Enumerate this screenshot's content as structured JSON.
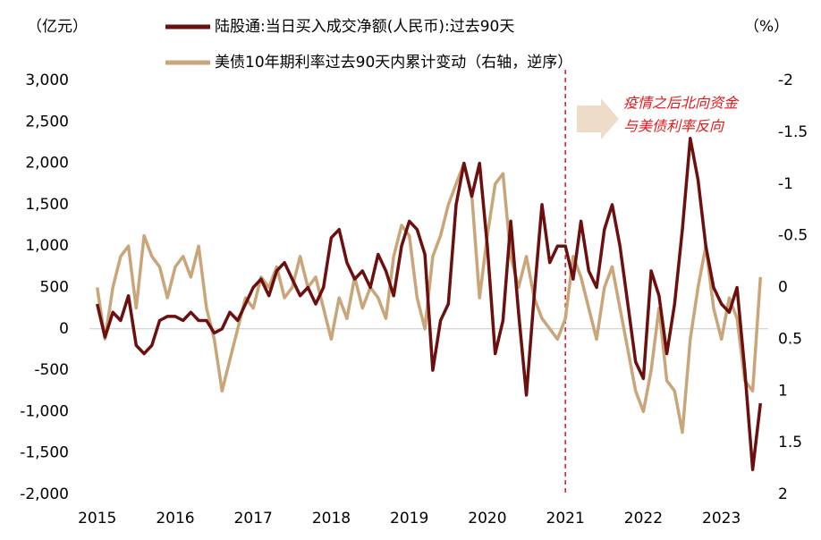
{
  "chart_data": {
    "type": "line",
    "y_axis_label": "（亿元）",
    "y2_axis_label": "（%）",
    "annotations": [
      "疫情之后北向资金",
      "与美债利率反向"
    ],
    "vline": 2021,
    "vline_color": "#d7191c",
    "xlim": [
      2014.9,
      2023.6
    ],
    "xticks": [
      2015,
      2016,
      2017,
      2018,
      2019,
      2020,
      2021,
      2022,
      2023
    ],
    "ylim": [
      -2000,
      3000
    ],
    "yticks": [
      {
        "value": -2000,
        "label": "-2,000"
      },
      {
        "value": -1500,
        "label": "-1,500"
      },
      {
        "value": -1000,
        "label": "-1,000"
      },
      -500,
      0,
      500,
      {
        "value": 1000,
        "label": "1,000"
      },
      {
        "value": 1500,
        "label": "1,500"
      },
      {
        "value": 2000,
        "label": "2,000"
      },
      {
        "value": 2500,
        "label": "2,500"
      },
      {
        "value": 3000,
        "label": "3,000"
      }
    ],
    "y2lim": [
      -2,
      2
    ],
    "y2_reversed": true,
    "y2ticks": [
      -2,
      -1.5,
      -1,
      -0.5,
      0,
      0.5,
      1,
      1.5,
      2
    ],
    "x": [
      2015.0,
      2015.1,
      2015.2,
      2015.3,
      2015.4,
      2015.5,
      2015.6,
      2015.7,
      2015.8,
      2015.9,
      2016.0,
      2016.1,
      2016.2,
      2016.3,
      2016.4,
      2016.5,
      2016.6,
      2016.7,
      2016.8,
      2016.9,
      2017.0,
      2017.1,
      2017.2,
      2017.3,
      2017.4,
      2017.5,
      2017.6,
      2017.7,
      2017.8,
      2017.9,
      2018.0,
      2018.1,
      2018.2,
      2018.3,
      2018.4,
      2018.5,
      2018.6,
      2018.7,
      2018.8,
      2018.9,
      2019.0,
      2019.1,
      2019.2,
      2019.3,
      2019.4,
      2019.5,
      2019.6,
      2019.7,
      2019.8,
      2019.9,
      2020.0,
      2020.1,
      2020.2,
      2020.3,
      2020.4,
      2020.5,
      2020.6,
      2020.7,
      2020.8,
      2020.9,
      2021.0,
      2021.1,
      2021.2,
      2021.3,
      2021.4,
      2021.5,
      2021.6,
      2021.7,
      2021.8,
      2021.9,
      2022.0,
      2022.1,
      2022.2,
      2022.3,
      2022.4,
      2022.5,
      2022.6,
      2022.7,
      2022.8,
      2022.9,
      2023.0,
      2023.1,
      2023.2,
      2023.3,
      2023.4,
      2023.5
    ],
    "series": [
      {
        "name": "陆股通:当日买入成交净额(人民币):过去90天",
        "color": "#6b0f0f",
        "values": [
          300,
          -100,
          200,
          100,
          400,
          -200,
          -300,
          -200,
          100,
          150,
          150,
          100,
          200,
          100,
          100,
          -50,
          0,
          200,
          100,
          300,
          500,
          600,
          400,
          700,
          800,
          600,
          400,
          500,
          300,
          500,
          1100,
          1200,
          800,
          600,
          700,
          500,
          900,
          700,
          400,
          1000,
          1300,
          1200,
          900,
          -500,
          100,
          300,
          1500,
          2000,
          1600,
          2000,
          1000,
          -300,
          100,
          1300,
          200,
          -800,
          400,
          1500,
          800,
          1000,
          1000,
          600,
          1300,
          700,
          500,
          1200,
          1500,
          1000,
          300,
          -400,
          -600,
          700,
          400,
          -300,
          300,
          1200,
          2300,
          1800,
          1000,
          500,
          300,
          200,
          500,
          -500,
          -1700,
          -900
        ]
      },
      {
        "name": "美债10年期利率过去90天内累计变动（右轴，逆序）",
        "color": "#c9a57a",
        "axis": "y2",
        "values": [
          0,
          0.5,
          0,
          -0.3,
          -0.4,
          0.2,
          -0.5,
          -0.3,
          -0.2,
          0.1,
          -0.2,
          -0.3,
          -0.1,
          -0.4,
          0.2,
          0.5,
          1.0,
          0.7,
          0.4,
          0.1,
          0.2,
          -0.1,
          0,
          -0.2,
          0.1,
          0,
          -0.3,
          0,
          -0.1,
          0.2,
          0.5,
          0.1,
          0.3,
          -0.1,
          0.2,
          0,
          0.1,
          0.3,
          -0.3,
          -0.6,
          -0.5,
          0.1,
          0.4,
          -0.3,
          -0.5,
          -0.8,
          -1.0,
          -1.2,
          -0.9,
          0.1,
          -0.5,
          -1.0,
          -1.1,
          -0.3,
          0,
          -0.3,
          0.1,
          0.3,
          0.4,
          0.5,
          0.3,
          -0.3,
          -0.1,
          0.2,
          0.5,
          0,
          -0.2,
          0.2,
          0.6,
          1.0,
          1.2,
          0.8,
          0.2,
          0.9,
          1.0,
          1.4,
          0.5,
          0,
          -0.4,
          0.2,
          0.5,
          0.1,
          0.3,
          0.9,
          1.0,
          -0.1
        ]
      }
    ]
  }
}
